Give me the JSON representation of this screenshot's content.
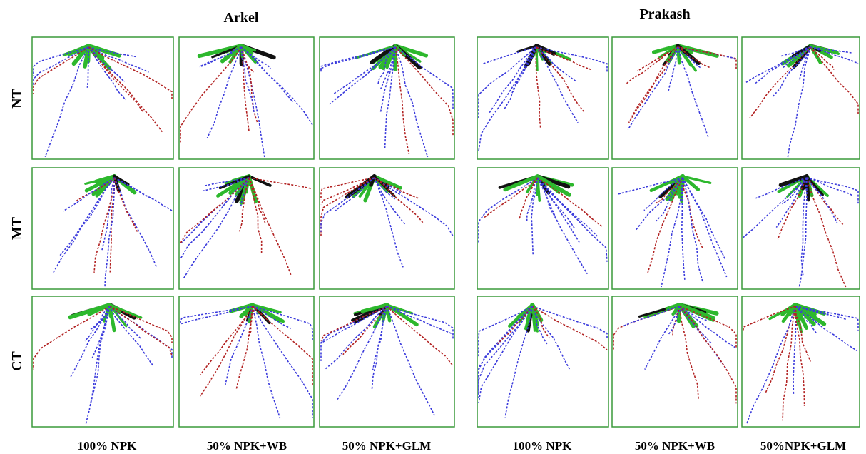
{
  "groups": [
    "Arkel",
    "Prakash"
  ],
  "rows": [
    "NT",
    "MT",
    "CT"
  ],
  "columns": [
    "100% NPK",
    "50% NPK+WB",
    "50% NPK+GLM",
    "100% NPK",
    "50% NPK+WB",
    "50%NPK+GLM"
  ]
}
